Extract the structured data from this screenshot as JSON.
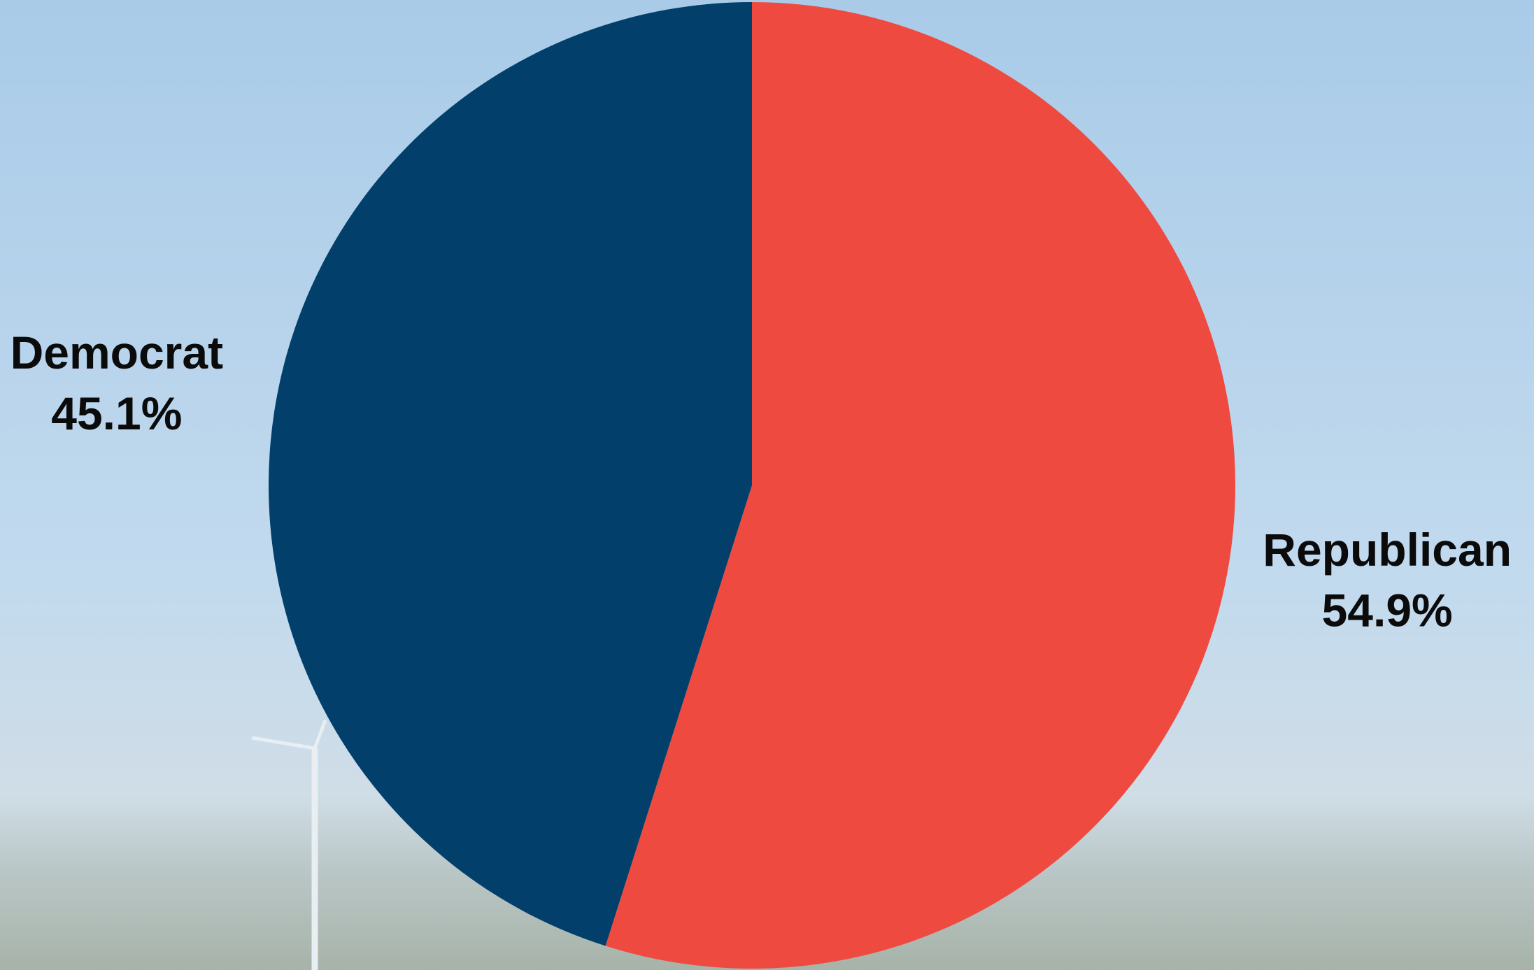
{
  "chart_data": {
    "type": "pie",
    "categories": [
      "Republican",
      "Democrat"
    ],
    "values": [
      54.9,
      45.1
    ],
    "value_labels": [
      "54.9%",
      "45.1%"
    ],
    "colors": [
      "#ef4a40",
      "#023f6b"
    ]
  }
}
